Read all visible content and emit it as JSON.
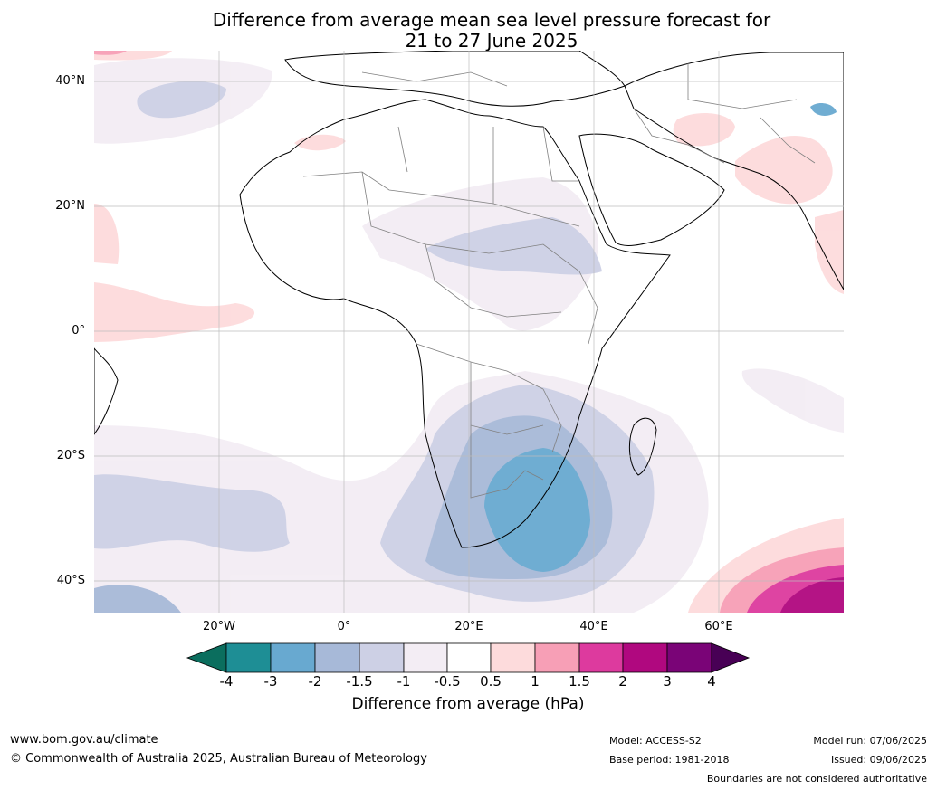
{
  "title": {
    "line1": "Difference from average mean sea level pressure forecast for",
    "line2": "21 to 27 June 2025"
  },
  "map": {
    "lat_labels": [
      "40°N",
      "20°N",
      "0°",
      "20°S",
      "40°S"
    ],
    "lon_labels": [
      "20°W",
      "0°",
      "20°E",
      "40°E",
      "60°E"
    ],
    "lat_range": [
      -45,
      45
    ],
    "lon_range": [
      -40,
      80
    ],
    "land_color": "#ffffff",
    "border_color": "#808080",
    "coast_color": "#000000"
  },
  "colorbar": {
    "tick_labels": [
      "-4",
      "-3",
      "-2",
      "-1.5",
      "-1",
      "-0.5",
      "0.5",
      "1",
      "1.5",
      "2",
      "3",
      "4"
    ],
    "colors": [
      "#0b6e5e",
      "#1e8e95",
      "#68a9d0",
      "#a7b9d8",
      "#cdd0e5",
      "#f3edf4",
      "#ffffff",
      "#fddbdc",
      "#f79fb6",
      "#dd3a9e",
      "#b0087f",
      "#7a0477",
      "#480055"
    ],
    "label": "Difference from average (hPa)"
  },
  "footer": {
    "url": "www.bom.gov.au/climate",
    "copyright": "© Commonwealth of Australia 2025, Australian Bureau of Meteorology",
    "model": "Model: ACCESS-S2",
    "base_period": "Base period: 1981-2018",
    "model_run": "Model run: 07/06/2025",
    "issued": "Issued: 09/06/2025",
    "disclaimer": "Boundaries are not considered authoritative"
  }
}
